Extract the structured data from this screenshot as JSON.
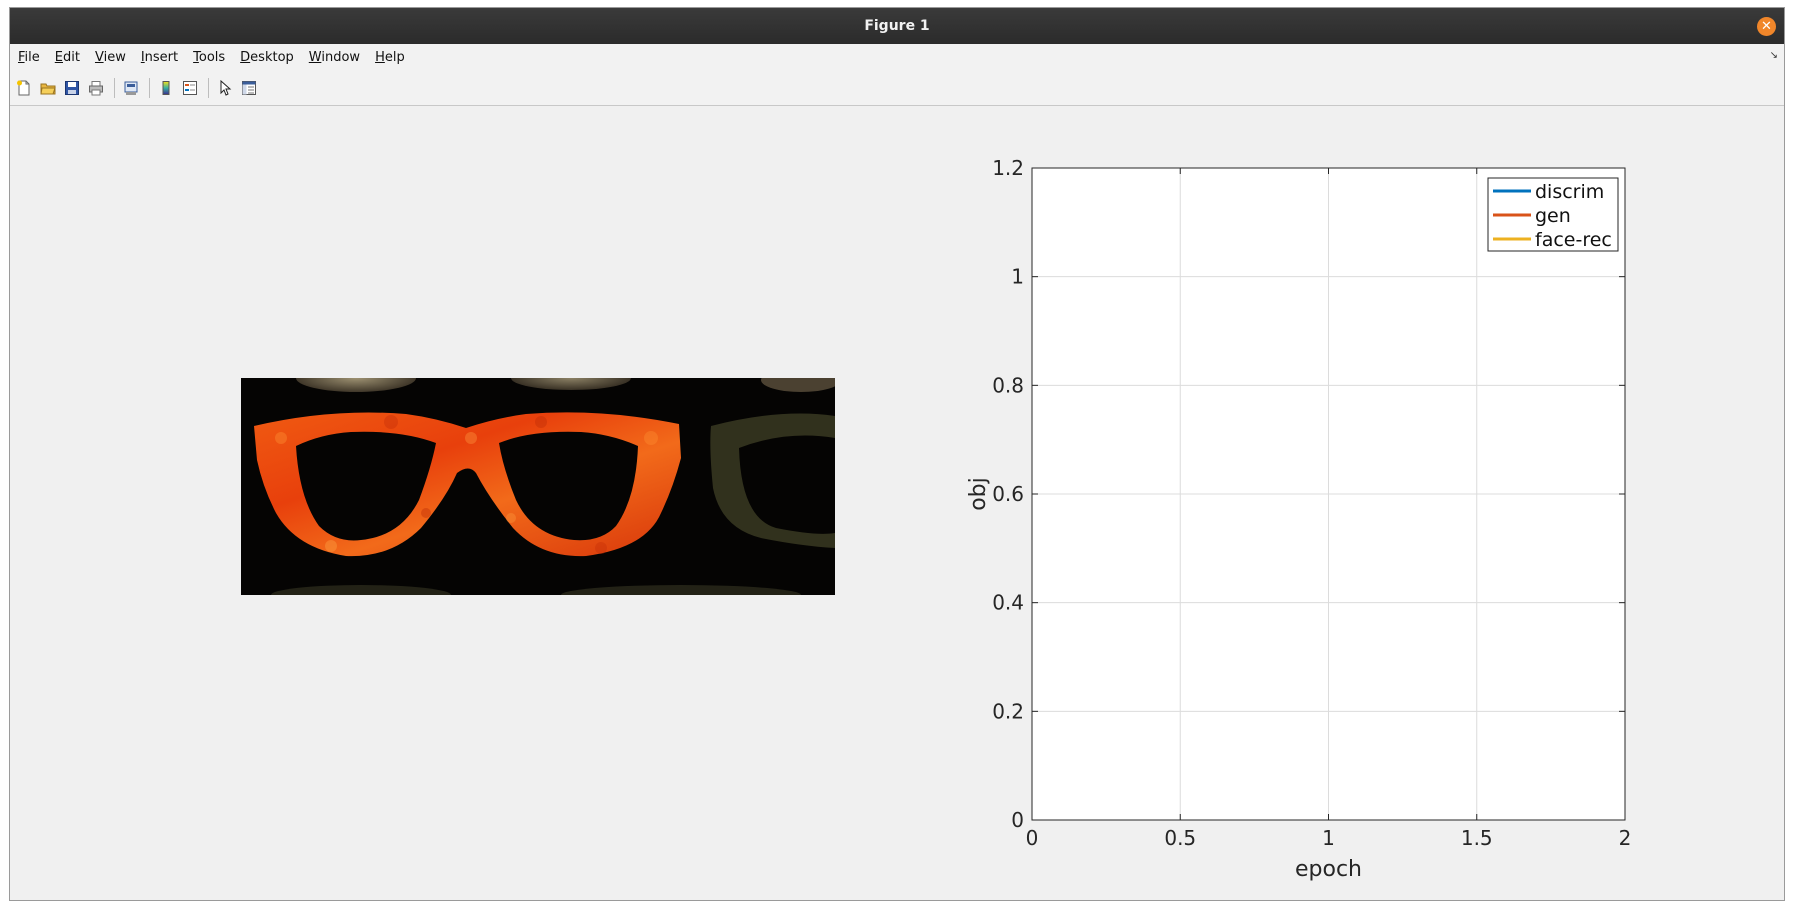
{
  "window": {
    "title": "Figure 1"
  },
  "menu": {
    "items": [
      {
        "mnemonic": "F",
        "rest": "ile"
      },
      {
        "mnemonic": "E",
        "rest": "dit"
      },
      {
        "mnemonic": "V",
        "rest": "iew"
      },
      {
        "mnemonic": "I",
        "rest": "nsert"
      },
      {
        "mnemonic": "T",
        "rest": "ools"
      },
      {
        "mnemonic": "D",
        "rest": "esktop"
      },
      {
        "mnemonic": "W",
        "rest": "indow"
      },
      {
        "mnemonic": "H",
        "rest": "elp"
      }
    ]
  },
  "toolbar": {
    "icons": [
      "new-figure-icon",
      "open-file-icon",
      "save-icon",
      "print-icon",
      "print-preview-icon",
      "colorbar-icon",
      "legend-icon",
      "pointer-icon",
      "property-editor-icon"
    ]
  },
  "chart_data": {
    "type": "line",
    "xlabel": "epoch",
    "ylabel": "obj",
    "xlim": [
      0,
      2
    ],
    "ylim": [
      0,
      1.2
    ],
    "xticks": [
      "0",
      "0.5",
      "1",
      "1.5",
      "2"
    ],
    "yticks": [
      "0",
      "0.2",
      "0.4",
      "0.6",
      "0.8",
      "1",
      "1.2"
    ],
    "grid": true,
    "legend_position": "top-right",
    "series": [
      {
        "name": "discrim",
        "color": "#0072bd",
        "x": [],
        "y": []
      },
      {
        "name": "gen",
        "color": "#d95319",
        "x": [],
        "y": []
      },
      {
        "name": "face-rec",
        "color": "#edb120",
        "x": [],
        "y": []
      }
    ]
  }
}
